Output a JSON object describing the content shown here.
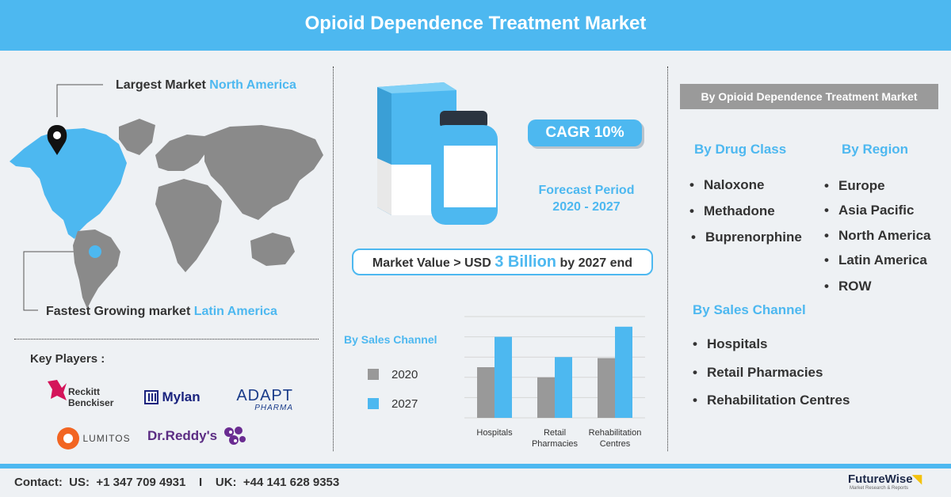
{
  "header": {
    "title": "Opioid Dependence Treatment Market"
  },
  "map": {
    "largest_prefix": "Largest Market",
    "largest_value": "North America",
    "fastest_prefix": "Fastest Growing market",
    "fastest_value": "Latin America"
  },
  "key_players": {
    "heading": "Key Players :",
    "logos": [
      "Reckitt Benckiser",
      "Mylan",
      "ADAPT PHARMA",
      "LUMITOS",
      "Dr.Reddy's"
    ],
    "reckitt_line1": "Reckitt",
    "reckitt_line2": "Benckiser",
    "mylan": "Mylan",
    "adapt_line1": "ADAPT",
    "adapt_line2": "PHARMA",
    "lumitos": "LUMITOS",
    "drreddys": "Dr.Reddy's"
  },
  "cagr": "CAGR 10%",
  "forecast": {
    "line1": "Forecast Period",
    "line2": "2020 - 2027"
  },
  "market_value": {
    "prefix": "Market Value > USD",
    "amount": "3 Billion",
    "suffix": "by 2027 end"
  },
  "chart_data": {
    "type": "bar",
    "title": "By Sales Channel",
    "categories": [
      "Hospitals",
      "Retail Pharmacies",
      "Rehabilitation Centres"
    ],
    "category_lines": [
      [
        "Hospitals"
      ],
      [
        "Retail",
        "Pharmacies"
      ],
      [
        "Rehabilitation",
        "Centres"
      ]
    ],
    "series": [
      {
        "name": "2020",
        "values": [
          50,
          40,
          59
        ],
        "color": "#999999"
      },
      {
        "name": "2027",
        "values": [
          80,
          60,
          90
        ],
        "color": "#4db8f0"
      }
    ],
    "ylim": [
      0,
      100
    ],
    "grid": true,
    "legend": "left"
  },
  "segments": {
    "box_title": "By Opioid Dependence Treatment Market",
    "drug_class": {
      "heading": "By Drug Class",
      "items": [
        "Naloxone",
        "Methadone",
        "Buprenorphine"
      ]
    },
    "region": {
      "heading": "By Region",
      "items": [
        "Europe",
        "Asia Pacific",
        "North America",
        "Latin America",
        "ROW"
      ]
    },
    "sales_channel": {
      "heading": "By Sales Channel",
      "items": [
        "Hospitals",
        "Retail Pharmacies",
        "Rehabilitation Centres"
      ]
    }
  },
  "footer": {
    "contact": "Contact:  US:  +1 347 709 4931    I    UK:  +44 141 628 9353",
    "brand": "FutureWise",
    "brand_tag": "Market Research & Reports"
  },
  "colors": {
    "accent": "#4db8f0",
    "gray": "#999999",
    "text": "#333333"
  }
}
